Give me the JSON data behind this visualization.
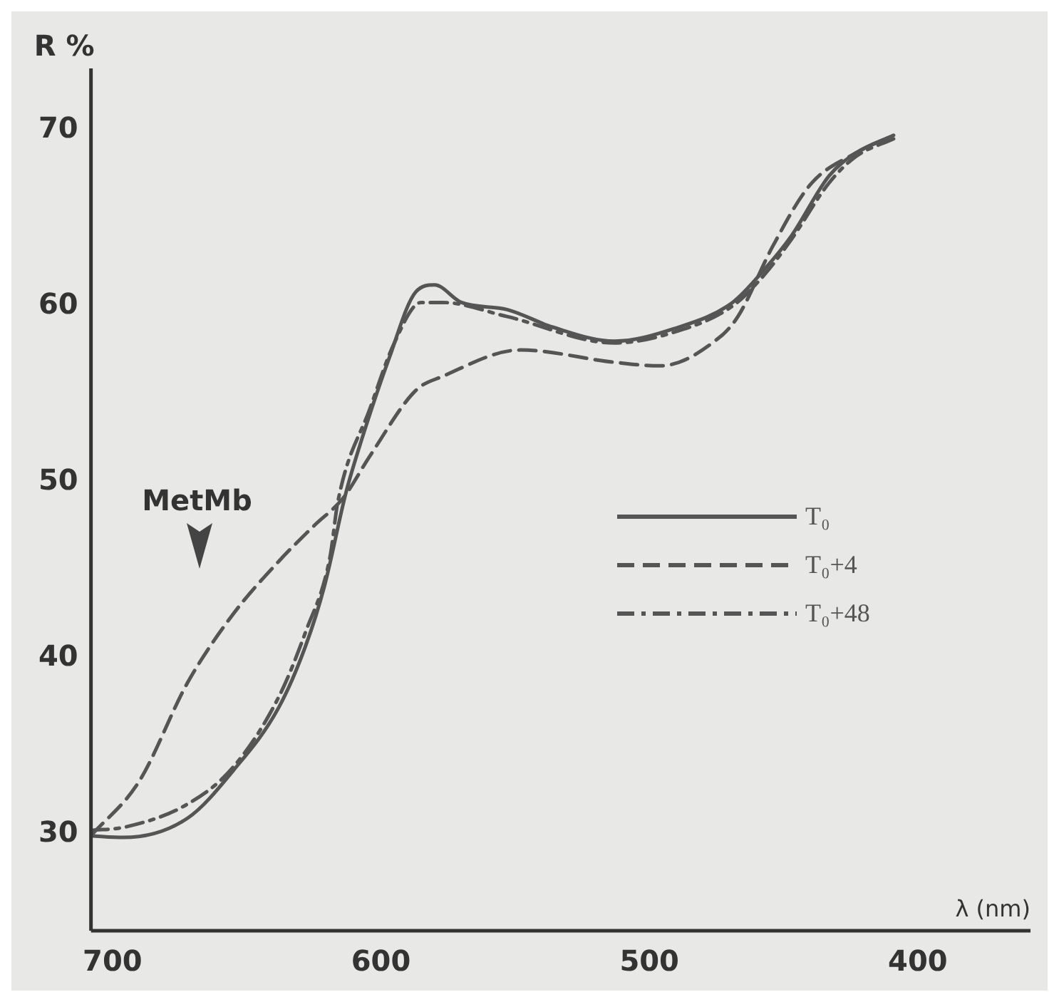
{
  "chart_data": {
    "type": "line",
    "xlabel": "λ (nm)",
    "ylabel": "R %",
    "xlim": [
      708,
      358
    ],
    "xticks": [
      700,
      600,
      500,
      400
    ],
    "ylim": [
      24.5,
      73.5
    ],
    "yticks": [
      30,
      40,
      50,
      60,
      70
    ],
    "grid": false,
    "legend": "right",
    "marker": "none",
    "annotations": [
      "MetMb"
    ],
    "series": [
      {
        "name": "T₀",
        "color": "#555555",
        "line_style": "solid",
        "x": [
          708,
          696,
          672,
          655,
          638,
          628,
          621,
          613,
          608,
          597,
          587,
          580,
          570,
          553,
          536,
          513,
          491,
          469,
          457,
          447,
          433,
          423,
          409
        ],
        "values": [
          29.9,
          29.8,
          30.9,
          33.6,
          37.2,
          40.7,
          44.1,
          49.4,
          52,
          57,
          60.8,
          61.2,
          60.2,
          59.8,
          58.8,
          58,
          58.7,
          60.2,
          62.1,
          64,
          67.4,
          68.7,
          69.7
        ]
      },
      {
        "name": "T₀+4",
        "color": "#555555",
        "line_style": "dashed",
        "x": [
          708,
          690,
          672,
          655,
          638,
          625,
          614,
          604,
          587,
          577,
          548,
          513,
          496,
          474,
          467,
          454,
          440,
          423,
          409
        ],
        "values": [
          29.9,
          33,
          38.6,
          42.5,
          45.5,
          47.5,
          49.1,
          51.5,
          55.2,
          56,
          57.5,
          56.8,
          56.6,
          58.2,
          59.4,
          63.4,
          66.9,
          68.7,
          69.7
        ]
      },
      {
        "name": "T₀+48",
        "color": "#555555",
        "line_style": "dashdot",
        "x": [
          708,
          695,
          672,
          655,
          638,
          628,
          619,
          616,
          604,
          595,
          585,
          577,
          553,
          513,
          491,
          469,
          457,
          447,
          433,
          423,
          409
        ],
        "values": [
          30.2,
          30.4,
          31.7,
          33.8,
          37.8,
          41.5,
          45.7,
          48.9,
          54.2,
          57.9,
          60.2,
          60.2,
          59.4,
          57.9,
          58.5,
          60,
          61.8,
          63.8,
          67,
          68.5,
          69.5
        ]
      }
    ]
  }
}
